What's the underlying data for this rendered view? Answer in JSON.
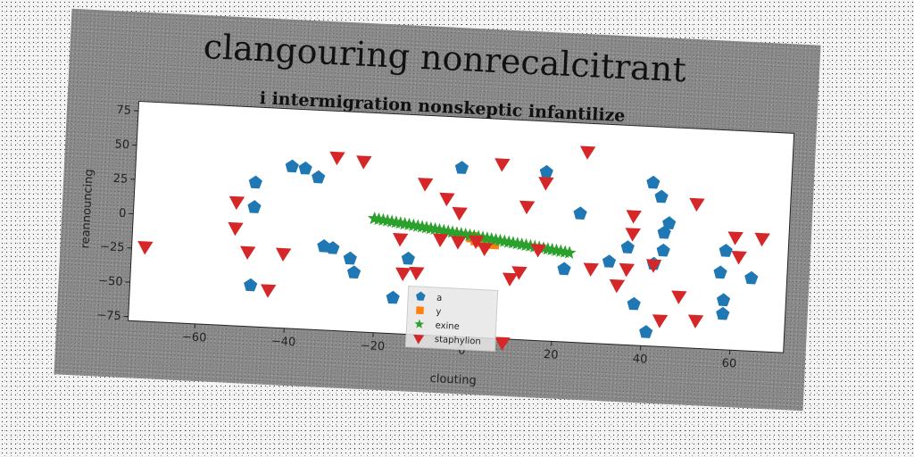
{
  "chart_data": {
    "type": "scatter",
    "title": "clangouring nonrecalcitrant",
    "subtitle": "i intermigration nonskeptic infantilize",
    "xlabel": "clouting",
    "ylabel": "reannouncing",
    "xlim": [
      -75,
      72
    ],
    "ylim": [
      -78,
      82
    ],
    "xticks": [
      -60,
      -40,
      -20,
      0,
      20,
      40,
      60
    ],
    "yticks": [
      -75,
      -50,
      -25,
      0,
      25,
      50,
      75
    ],
    "grid": false,
    "legend_position": "lower center",
    "series": [
      {
        "name": "a",
        "marker": "pentagon",
        "color": "#1f77b4",
        "points": [
          [
            -48,
            27
          ],
          [
            -48,
            9
          ],
          [
            -48,
            -48
          ],
          [
            -40,
            40
          ],
          [
            -37,
            39
          ],
          [
            -34,
            33
          ],
          [
            -32,
            -17
          ],
          [
            -30,
            -18
          ],
          [
            -26,
            -25
          ],
          [
            -25,
            -35
          ],
          [
            -13,
            -23
          ],
          [
            -16,
            -52
          ],
          [
            -2,
            45
          ],
          [
            17,
            45
          ],
          [
            22,
            -25
          ],
          [
            25,
            16
          ],
          [
            32,
            -18
          ],
          [
            36,
            -7
          ],
          [
            38,
            -48
          ],
          [
            41,
            41
          ],
          [
            43,
            31
          ],
          [
            44,
            5
          ],
          [
            45,
            12
          ],
          [
            44,
            -8
          ],
          [
            42,
            -18
          ],
          [
            41,
            -68
          ],
          [
            58,
            -6
          ],
          [
            57,
            -22
          ],
          [
            58,
            -42
          ],
          [
            58,
            -52
          ],
          [
            64,
            -25
          ]
        ]
      },
      {
        "name": "y",
        "marker": "square",
        "color": "#ff7f0e",
        "points": [
          [
            1,
            -5
          ],
          [
            2,
            -7
          ],
          [
            3,
            -8
          ],
          [
            4,
            -8
          ],
          [
            5,
            -8
          ],
          [
            6,
            -9
          ]
        ]
      },
      {
        "name": "exine",
        "marker": "star",
        "color": "#2ca02c",
        "line_from": [
          -21,
          5
        ],
        "line_to": [
          23,
          -13
        ],
        "count": 46
      },
      {
        "name": "staphylion",
        "marker": "triangle_down",
        "color": "#d62728",
        "points": [
          [
            -72,
            -23
          ],
          [
            -52,
            13
          ],
          [
            -52,
            -6
          ],
          [
            -49,
            -23
          ],
          [
            -44,
            -50
          ],
          [
            -41,
            -23
          ],
          [
            -30,
            49
          ],
          [
            -24,
            47
          ],
          [
            -15,
            -8
          ],
          [
            -14,
            -33
          ],
          [
            -11,
            -32
          ],
          [
            -10,
            33
          ],
          [
            -6,
            -7
          ],
          [
            -5,
            23
          ],
          [
            -2,
            13
          ],
          [
            -2,
            -8
          ],
          [
            2,
            -7
          ],
          [
            4,
            -12
          ],
          [
            7,
            50
          ],
          [
            10,
            -33
          ],
          [
            12,
            -28
          ],
          [
            13,
            20
          ],
          [
            16,
            -11
          ],
          [
            17,
            38
          ],
          [
            26,
            62
          ],
          [
            28,
            -23
          ],
          [
            34,
            -34
          ],
          [
            37,
            17
          ],
          [
            37,
            4
          ],
          [
            36,
            -22
          ],
          [
            42,
            -18
          ],
          [
            44,
            -58
          ],
          [
            48,
            -40
          ],
          [
            51,
            28
          ],
          [
            52,
            -57
          ],
          [
            60,
            5
          ],
          [
            61,
            -9
          ],
          [
            66,
            5
          ],
          [
            9,
            -80
          ]
        ]
      }
    ]
  }
}
